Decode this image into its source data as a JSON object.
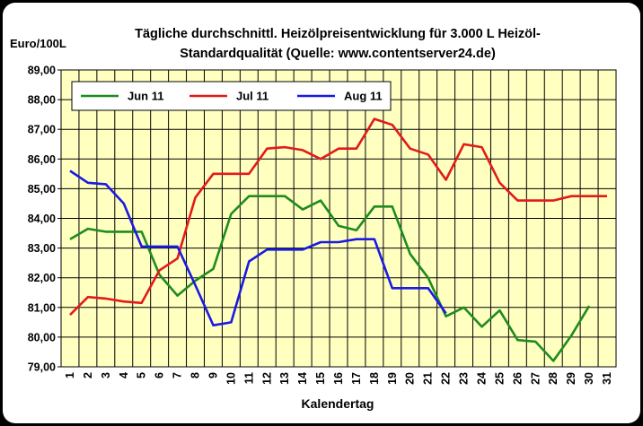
{
  "chart_data": {
    "type": "line",
    "title_line1": "Tägliche durchschnittl. Heizölpreisentwicklung für 3.000 L Heizöl-",
    "title_line2": "Standardqualität (Quelle: www.contentserver24.de)",
    "ylabel": "Euro/100L",
    "xlabel": "Kalendertag",
    "ylim": [
      79,
      89
    ],
    "yticks": [
      79,
      80,
      81,
      82,
      83,
      84,
      85,
      86,
      87,
      88,
      89
    ],
    "ytick_labels": [
      "79,00",
      "80,00",
      "81,00",
      "82,00",
      "83,00",
      "84,00",
      "85,00",
      "86,00",
      "87,00",
      "88,00",
      "89,00"
    ],
    "x": [
      "1",
      "2",
      "3",
      "4",
      "5",
      "6",
      "7",
      "8",
      "9",
      "10",
      "11",
      "12",
      "13",
      "14",
      "15",
      "16",
      "17",
      "18",
      "19",
      "20",
      "21",
      "22",
      "23",
      "24",
      "25",
      "26",
      "27",
      "28",
      "29",
      "30",
      "31"
    ],
    "grid": true,
    "plot_background": "#ffffc0",
    "legend_placement": "top-left",
    "series": [
      {
        "name": "Jun 11",
        "color": "#1e8c1e",
        "values": [
          83.3,
          83.65,
          83.55,
          83.55,
          83.55,
          82.1,
          81.4,
          81.9,
          82.3,
          84.15,
          84.75,
          84.75,
          84.75,
          84.3,
          84.6,
          83.75,
          83.6,
          84.4,
          84.4,
          82.8,
          82.0,
          80.7,
          81.0,
          80.35,
          80.9,
          79.9,
          79.85,
          79.2,
          80.05,
          81.05,
          null
        ]
      },
      {
        "name": "Jul 11",
        "color": "#e31a1a",
        "values": [
          80.75,
          81.35,
          81.3,
          81.2,
          81.15,
          82.25,
          82.65,
          84.7,
          85.5,
          85.5,
          85.5,
          86.35,
          86.4,
          86.3,
          86.0,
          86.35,
          86.35,
          87.35,
          87.15,
          86.35,
          86.15,
          85.3,
          86.5,
          86.4,
          85.2,
          84.6,
          84.6,
          84.6,
          84.75,
          84.75,
          84.75
        ]
      },
      {
        "name": "Aug 11",
        "color": "#1a1ae3",
        "values": [
          85.6,
          85.2,
          85.15,
          84.5,
          83.05,
          83.05,
          83.05,
          81.75,
          80.4,
          80.5,
          82.55,
          82.95,
          82.95,
          82.95,
          83.2,
          83.2,
          83.3,
          83.3,
          81.65,
          81.65,
          81.65,
          80.8,
          null,
          null,
          null,
          null,
          null,
          null,
          null,
          null,
          null
        ]
      }
    ]
  }
}
